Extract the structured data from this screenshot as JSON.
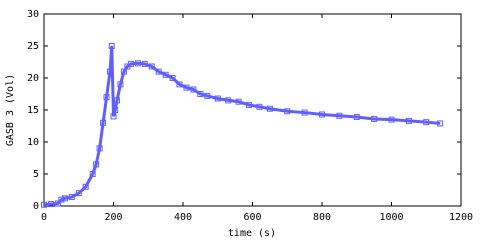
{
  "chart_data": {
    "type": "scatter",
    "xlabel": "time (s)",
    "ylabel": "GASB 3 (Vol)",
    "xlim": [
      0,
      1200
    ],
    "xticks": [
      0,
      200,
      400,
      600,
      800,
      1000,
      1200
    ],
    "ylim": [
      0,
      30
    ],
    "yticks": [
      0,
      5,
      10,
      15,
      20,
      25,
      30
    ],
    "series": [
      {
        "color": "#5f5fff",
        "x": [
          0,
          20,
          40,
          50,
          60,
          80,
          100,
          120,
          140,
          150,
          160,
          170,
          180,
          190,
          195,
          200,
          205,
          210,
          220,
          230,
          240,
          250,
          270,
          290,
          310,
          330,
          350,
          370,
          390,
          410,
          430,
          450,
          470,
          500,
          530,
          560,
          590,
          620,
          650,
          700,
          750,
          800,
          850,
          900,
          950,
          1000,
          1050,
          1100,
          1140
        ],
        "values": [
          0.2,
          0.3,
          0.4,
          1.0,
          1.2,
          1.4,
          2.0,
          3.0,
          5.0,
          6.5,
          9,
          13,
          17,
          21,
          25,
          14,
          15,
          16.5,
          19,
          21,
          21.8,
          22.2,
          22.3,
          22.2,
          21.8,
          21,
          20.5,
          20,
          19,
          18.5,
          18.2,
          17.5,
          17.2,
          16.8,
          16.5,
          16.3,
          15.8,
          15.5,
          15.2,
          14.8,
          14.6,
          14.3,
          14.1,
          13.9,
          13.6,
          13.5,
          13.3,
          13.1,
          12.9
        ]
      }
    ]
  }
}
